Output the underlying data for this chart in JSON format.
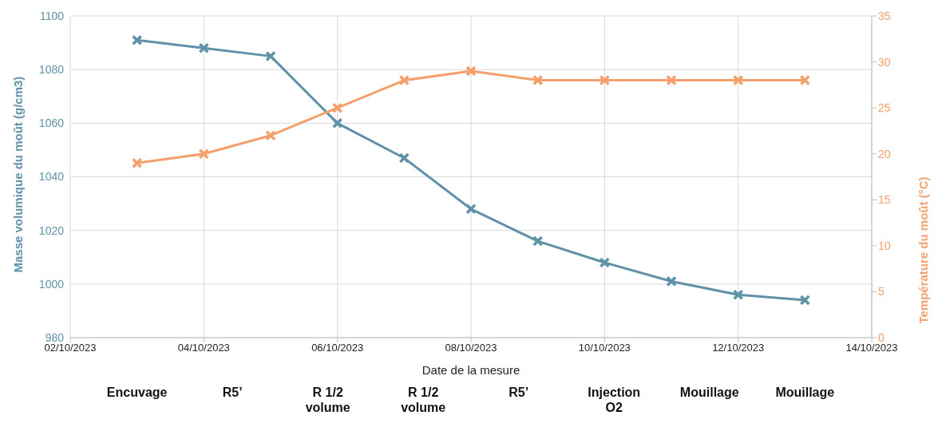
{
  "chart_data": {
    "type": "line",
    "xlabel": "Date de la mesure",
    "ylabel": "Masse volumique du moût (g/cm3)",
    "y2label": "Température du moût (°C)",
    "x": [
      "2023-10-03",
      "2023-10-04",
      "2023-10-05",
      "2023-10-06",
      "2023-10-07",
      "2023-10-08",
      "2023-10-09",
      "2023-10-10",
      "2023-10-11",
      "2023-10-12",
      "2023-10-13"
    ],
    "series": [
      {
        "color": "#5f92a8",
        "values": [
          1091,
          1088,
          1085,
          1060,
          1047,
          1028,
          1016,
          1008,
          1001,
          996,
          994
        ]
      },
      {
        "color": "#f4a06c",
        "axis": "y2",
        "values": [
          19,
          20,
          22,
          25,
          28,
          29,
          28,
          28,
          28,
          28,
          28
        ]
      }
    ],
    "xlim": [
      "2023-10-02",
      "2023-10-14"
    ],
    "xticks": [
      {
        "value": "2023-10-02",
        "label": "02/10/2023"
      },
      {
        "value": "2023-10-04",
        "label": "04/10/2023"
      },
      {
        "value": "2023-10-06",
        "label": "06/10/2023"
      },
      {
        "value": "2023-10-08",
        "label": "08/10/2023"
      },
      {
        "value": "2023-10-10",
        "label": "10/10/2023"
      },
      {
        "value": "2023-10-12",
        "label": "12/10/2023"
      },
      {
        "value": "2023-10-14",
        "label": "14/10/2023"
      }
    ],
    "ylim": [
      980,
      1100
    ],
    "yticks": [
      980,
      1000,
      1020,
      1040,
      1060,
      1080,
      1100
    ],
    "y2lim": [
      0,
      35
    ],
    "y2ticks": [
      0,
      5,
      10,
      15,
      20,
      25,
      30,
      35
    ],
    "annotations": [
      "Encuvage",
      "R5’",
      "R 1/2 volume",
      "R 1/2 volume",
      "R5’",
      "Injection O2",
      "Mouillage",
      "Mouillage"
    ],
    "grid": true,
    "marker": "cross",
    "line_style": "solid"
  }
}
